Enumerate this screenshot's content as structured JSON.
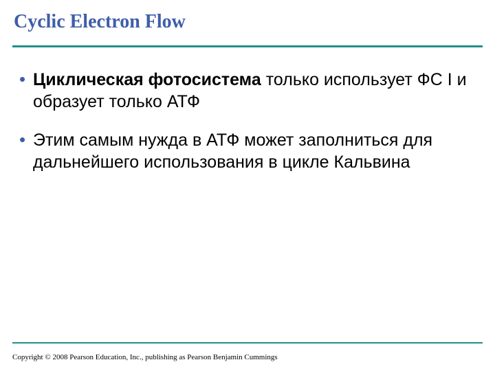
{
  "colors": {
    "title": "#3e5ea8",
    "bullet_marker": "#3e5ea8",
    "rule": "#1f8f8a",
    "body_text": "#000000",
    "background": "#ffffff"
  },
  "typography": {
    "title_font": "Times New Roman",
    "title_size_pt": 22,
    "title_weight": "bold",
    "body_font": "Arial",
    "body_size_pt": 19,
    "copyright_font": "Times New Roman",
    "copyright_size_pt": 8
  },
  "title": "Cyclic Electron Flow",
  "bullets": [
    {
      "bold": "Циклическая фотосистема",
      "rest": " только использует ФС I и образует только АТФ"
    },
    {
      "bold": "",
      "rest": "Этим самым нужда в АТФ может заполниться для дальнейшего использования в цикле Кальвина"
    }
  ],
  "copyright": "Copyright © 2008 Pearson Education, Inc., publishing as Pearson Benjamin Cummings"
}
